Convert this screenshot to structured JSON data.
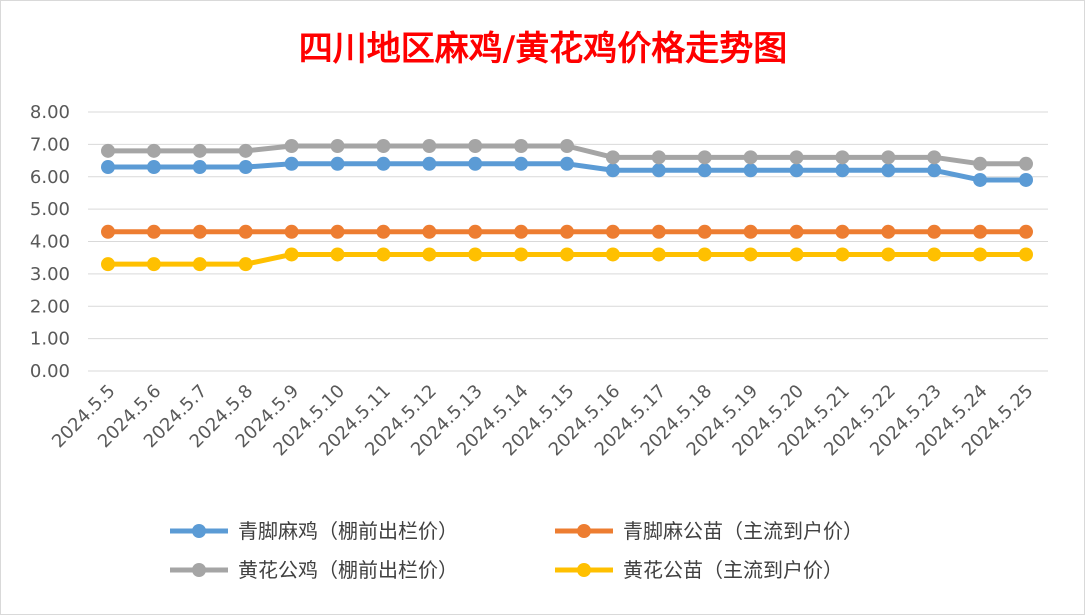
{
  "chart_data": {
    "type": "line",
    "title": "四川地区麻鸡/黄花鸡价格走势图",
    "xlabel": "",
    "ylabel": "",
    "ylim": [
      0,
      8
    ],
    "yticks": [
      "0.00",
      "1.00",
      "2.00",
      "3.00",
      "4.00",
      "5.00",
      "6.00",
      "7.00",
      "8.00"
    ],
    "grid": true,
    "legend_position": "bottom",
    "categories": [
      "2024.5.5",
      "2024.5.6",
      "2024.5.7",
      "2024.5.8",
      "2024.5.9",
      "2024.5.10",
      "2024.5.11",
      "2024.5.12",
      "2024.5.13",
      "2024.5.14",
      "2024.5.15",
      "2024.5.16",
      "2024.5.17",
      "2024.5.18",
      "2024.5.19",
      "2024.5.20",
      "2024.5.21",
      "2024.5.22",
      "2024.5.23",
      "2024.5.24",
      "2024.5.25"
    ],
    "series": [
      {
        "name": "青脚麻鸡（棚前出栏价）",
        "color": "#5b9bd5",
        "values": [
          6.3,
          6.3,
          6.3,
          6.3,
          6.4,
          6.4,
          6.4,
          6.4,
          6.4,
          6.4,
          6.4,
          6.2,
          6.2,
          6.2,
          6.2,
          6.2,
          6.2,
          6.2,
          6.2,
          5.9,
          5.9
        ]
      },
      {
        "name": "青脚麻公苗（主流到户价）",
        "color": "#ed7d31",
        "values": [
          4.3,
          4.3,
          4.3,
          4.3,
          4.3,
          4.3,
          4.3,
          4.3,
          4.3,
          4.3,
          4.3,
          4.3,
          4.3,
          4.3,
          4.3,
          4.3,
          4.3,
          4.3,
          4.3,
          4.3,
          4.3
        ]
      },
      {
        "name": "黄花公鸡（棚前出栏价）",
        "color": "#a5a5a5",
        "values": [
          6.8,
          6.8,
          6.8,
          6.8,
          6.95,
          6.95,
          6.95,
          6.95,
          6.95,
          6.95,
          6.95,
          6.6,
          6.6,
          6.6,
          6.6,
          6.6,
          6.6,
          6.6,
          6.6,
          6.4,
          6.4
        ]
      },
      {
        "name": "黄花公苗（主流到户价）",
        "color": "#ffc000",
        "values": [
          3.3,
          3.3,
          3.3,
          3.3,
          3.6,
          3.6,
          3.6,
          3.6,
          3.6,
          3.6,
          3.6,
          3.6,
          3.6,
          3.6,
          3.6,
          3.6,
          3.6,
          3.6,
          3.6,
          3.6,
          3.6
        ]
      }
    ]
  }
}
